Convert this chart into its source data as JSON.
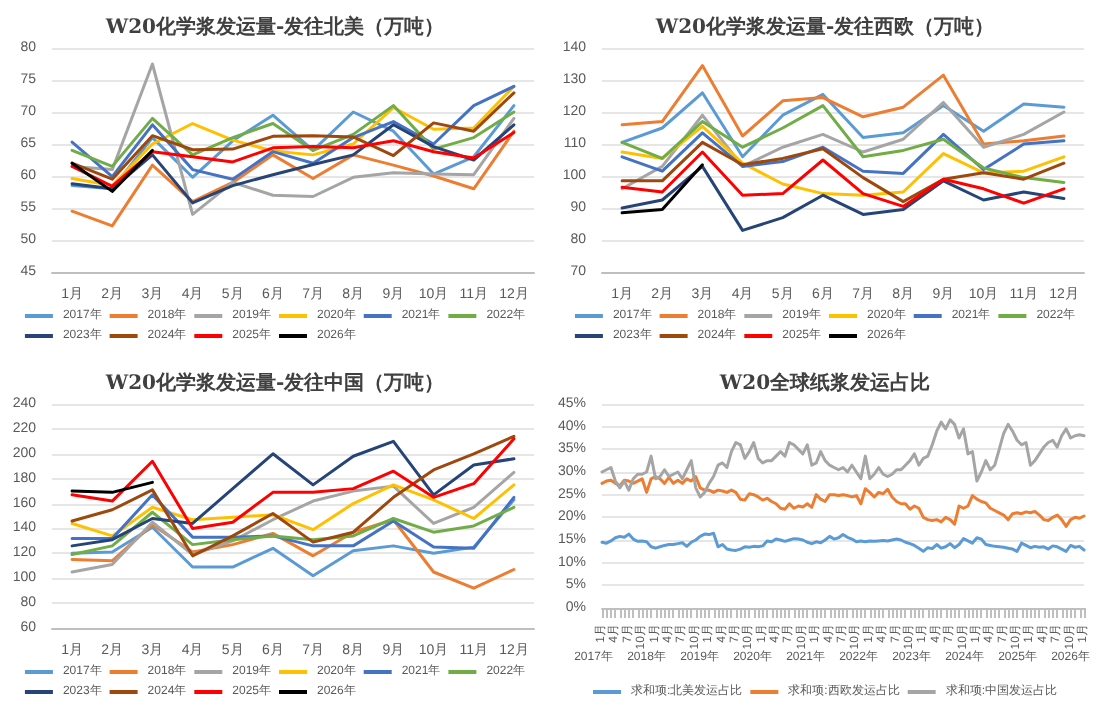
{
  "chart_data": [
    {
      "type": "line",
      "title": "W20化学浆发运量-发往北美（万吨）",
      "categories": [
        "1月",
        "2月",
        "3月",
        "4月",
        "5月",
        "6月",
        "7月",
        "8月",
        "9月",
        "10月",
        "11月",
        "12月"
      ],
      "ylim": [
        45,
        80
      ],
      "yticks": [
        45,
        50,
        55,
        60,
        65,
        70,
        75,
        80
      ],
      "grid": "y",
      "legend": "bottom",
      "marker": "none",
      "line_style": "solid",
      "series": [
        {
          "name": "2017年",
          "color": "#5b9bd5",
          "values": [
            58.5,
            58,
            66,
            59.8,
            65.5,
            69.5,
            64,
            70,
            67,
            60.3,
            63,
            71
          ]
        },
        {
          "name": "2018年",
          "color": "#ed7d31",
          "values": [
            54.5,
            52.2,
            61.7,
            56,
            59,
            63.3,
            59.6,
            63.3,
            61.7,
            60,
            58,
            67
          ]
        },
        {
          "name": "2019年",
          "color": "#a5a5a5",
          "values": [
            61.5,
            61,
            77.5,
            54,
            59,
            57,
            56.8,
            59.8,
            60.5,
            60.3,
            60.2,
            69
          ]
        },
        {
          "name": "2020年",
          "color": "#ffc000",
          "values": [
            59.6,
            58.5,
            65,
            68.2,
            65.6,
            63.9,
            63.3,
            65,
            70.7,
            67.3,
            67.5,
            74
          ]
        },
        {
          "name": "2021年",
          "color": "#4472c4",
          "values": [
            65.3,
            59.9,
            68,
            61,
            59.5,
            63.8,
            62,
            66,
            68.5,
            65,
            71,
            74
          ]
        },
        {
          "name": "2022年",
          "color": "#70ad47",
          "values": [
            64,
            61.5,
            69,
            63.3,
            66,
            68.2,
            64,
            66.5,
            71,
            64.2,
            66,
            70
          ]
        },
        {
          "name": "2023年",
          "color": "#264478",
          "values": [
            58.8,
            58,
            63.3,
            55.8,
            58.5,
            60.2,
            61.8,
            63.3,
            68,
            64.6,
            62.5,
            68
          ]
        },
        {
          "name": "2024年",
          "color": "#9e480e",
          "values": [
            62,
            59.5,
            66.3,
            64.1,
            64.2,
            66.2,
            66.3,
            66.1,
            63.2,
            68.3,
            67,
            73
          ]
        },
        {
          "name": "2025年",
          "color": "#ff0000",
          "values": [
            61.5,
            58.4,
            63.8,
            63,
            62.2,
            64.4,
            64.6,
            64.4,
            65.5,
            63.8,
            62.8,
            66.8
          ]
        },
        {
          "name": "2026年",
          "color": "#000000",
          "values": [
            62,
            57.6,
            64,
            null,
            null,
            null,
            null,
            null,
            null,
            null,
            null,
            null
          ]
        }
      ]
    },
    {
      "type": "line",
      "title": "W20化学浆发运量-发往西欧（万吨）",
      "categories": [
        "1月",
        "2月",
        "3月",
        "4月",
        "5月",
        "6月",
        "7月",
        "8月",
        "9月",
        "10月",
        "11月",
        "12月"
      ],
      "ylim": [
        70,
        140
      ],
      "yticks": [
        70,
        80,
        90,
        100,
        110,
        120,
        130,
        140
      ],
      "grid": "y",
      "legend": "bottom",
      "marker": "none",
      "line_style": "solid",
      "series": [
        {
          "name": "2017年",
          "color": "#5b9bd5",
          "values": [
            110.5,
            115,
            126,
            106,
            119,
            125.5,
            112,
            113.5,
            122,
            114,
            122.5,
            121.5
          ]
        },
        {
          "name": "2018年",
          "color": "#ed7d31",
          "values": [
            116,
            117,
            134.5,
            112.5,
            123.5,
            124.5,
            118.5,
            121.5,
            131.5,
            110,
            111,
            112.5
          ]
        },
        {
          "name": "2019年",
          "color": "#a5a5a5",
          "values": [
            96,
            103,
            119,
            103,
            109,
            113,
            107.5,
            111.5,
            123,
            109,
            113,
            120
          ]
        },
        {
          "name": "2020年",
          "color": "#ffc000",
          "values": [
            107.5,
            105.5,
            115.5,
            104,
            97.5,
            94.5,
            94,
            95,
            107,
            101,
            101.5,
            106
          ]
        },
        {
          "name": "2021年",
          "color": "#4472c4",
          "values": [
            106,
            101.5,
            113.5,
            103,
            104.5,
            109,
            101.5,
            100.8,
            113,
            102,
            110,
            111
          ]
        },
        {
          "name": "2022年",
          "color": "#70ad47",
          "values": [
            110.5,
            105.5,
            117,
            109,
            115,
            122,
            106,
            108,
            111.5,
            102.5,
            99.5,
            98
          ]
        },
        {
          "name": "2023年",
          "color": "#264478",
          "values": [
            90,
            92.5,
            103,
            83,
            87,
            94,
            88,
            89.5,
            98.5,
            92.5,
            95,
            93
          ]
        },
        {
          "name": "2024年",
          "color": "#9e480e",
          "values": [
            98.5,
            98.5,
            110.5,
            103.5,
            105.5,
            108.5,
            99.5,
            92,
            99,
            101,
            99,
            104
          ]
        },
        {
          "name": "2025年",
          "color": "#ff0000",
          "values": [
            96.5,
            95,
            107.5,
            94,
            94.5,
            105,
            94.5,
            90.5,
            99,
            96,
            91.5,
            96
          ]
        },
        {
          "name": "2026年",
          "color": "#000000",
          "values": [
            88.5,
            89.5,
            103.5,
            null,
            null,
            null,
            null,
            null,
            null,
            null,
            null,
            null
          ]
        }
      ]
    },
    {
      "type": "line",
      "title": "W20化学浆发运量-发往中国（万吨）",
      "categories": [
        "1月",
        "2月",
        "3月",
        "4月",
        "5月",
        "6月",
        "7月",
        "8月",
        "9月",
        "10月",
        "11月",
        "12月"
      ],
      "ylim": [
        60,
        240
      ],
      "yticks": [
        60,
        80,
        100,
        120,
        140,
        160,
        180,
        200,
        220,
        240
      ],
      "grid": "y",
      "legend": "bottom",
      "marker": "none",
      "line_style": "solid",
      "series": [
        {
          "name": "2017年",
          "color": "#5b9bd5",
          "values": [
            120,
            121,
            141,
            109,
            109,
            124,
            102,
            122,
            126,
            120,
            125,
            163
          ]
        },
        {
          "name": "2018年",
          "color": "#ed7d31",
          "values": [
            115,
            114,
            143,
            121,
            127,
            136,
            118,
            137,
            147,
            105,
            92,
            107
          ]
        },
        {
          "name": "2019年",
          "color": "#a5a5a5",
          "values": [
            105,
            111,
            145,
            119,
            130,
            147,
            162,
            170,
            174,
            144,
            157,
            185
          ]
        },
        {
          "name": "2020年",
          "color": "#ffc000",
          "values": [
            144,
            134,
            157,
            147,
            149,
            151,
            139,
            160,
            175,
            163,
            148,
            175
          ]
        },
        {
          "name": "2021年",
          "color": "#4472c4",
          "values": [
            132,
            132,
            167,
            133,
            133,
            134,
            126,
            126,
            146,
            125,
            124,
            165
          ]
        },
        {
          "name": "2022年",
          "color": "#70ad47",
          "values": [
            119,
            126,
            153,
            127,
            131,
            134,
            131,
            134,
            148,
            137,
            142,
            157
          ]
        },
        {
          "name": "2023年",
          "color": "#264478",
          "values": [
            126,
            131,
            148,
            144,
            172,
            200,
            175,
            198,
            210,
            167,
            191,
            196
          ]
        },
        {
          "name": "2024年",
          "color": "#9e480e",
          "values": [
            146,
            155,
            171,
            118,
            134,
            152,
            129,
            137,
            165,
            187,
            200,
            214
          ]
        },
        {
          "name": "2025年",
          "color": "#ff0000",
          "values": [
            167,
            162,
            194,
            140,
            145,
            169,
            169,
            172,
            186,
            165,
            176,
            212
          ]
        },
        {
          "name": "2026年",
          "color": "#000000",
          "values": [
            170,
            169,
            177,
            null,
            null,
            null,
            null,
            null,
            null,
            null,
            null,
            null
          ]
        }
      ]
    },
    {
      "type": "line",
      "title": "W20全球纸浆发运占比",
      "annotations": [
        "2017年",
        "2018年",
        "2019年",
        "2020年",
        "2021年",
        "2022年",
        "2023年",
        "2024年",
        "2025年",
        "2026年"
      ],
      "categories": [
        "1月",
        null,
        null,
        "4月",
        null,
        null,
        "7月",
        null,
        null,
        "10月",
        null,
        null,
        "1月",
        null,
        null,
        "4月",
        null,
        null,
        "7月",
        null,
        null,
        "10月",
        null,
        null,
        "1月",
        null,
        null,
        "4月",
        null,
        null,
        "7月",
        null,
        null,
        "10月",
        null,
        null,
        "1月",
        null,
        null,
        "4月",
        null,
        null,
        "7月",
        null,
        null,
        "10月",
        null,
        null,
        "1月",
        null,
        null,
        "4月",
        null,
        null,
        "7月",
        null,
        null,
        "10月",
        null,
        null,
        "1月",
        null,
        null,
        "4月",
        null,
        null,
        "7月",
        null,
        null,
        "10月",
        null,
        null,
        "1月",
        null,
        null,
        "4月",
        null,
        null,
        "7月",
        null,
        null,
        "10月",
        null,
        null,
        "1月",
        null,
        null,
        "4月",
        null,
        null,
        "7月",
        null,
        null,
        "10月",
        null,
        null,
        "1月",
        null,
        null,
        "4月",
        null,
        null,
        "7月",
        null,
        null,
        "10月",
        null,
        null,
        "1月"
      ],
      "ylim": [
        0,
        45
      ],
      "yticks": [
        {
          "value": 0,
          "label": "0%"
        },
        {
          "value": 5,
          "label": "5%"
        },
        {
          "value": 10,
          "label": "10%"
        },
        {
          "value": 15,
          "label": "15%"
        },
        {
          "value": 20,
          "label": "20%"
        },
        {
          "value": 25,
          "label": "25%"
        },
        {
          "value": 30,
          "label": "30%"
        },
        {
          "value": 35,
          "label": "35%"
        },
        {
          "value": 40,
          "label": "40%"
        },
        {
          "value": 45,
          "label": "45%"
        }
      ],
      "grid": "y",
      "legend": "bottom",
      "marker": "none",
      "line_style": "solid",
      "series": [
        {
          "name": "求和项:北美发运占比",
          "color": "#5b9bd5",
          "values": [
            14.5,
            14.3,
            14.8,
            15.5,
            15.8,
            15.6,
            16.3,
            15.2,
            14.7,
            14.8,
            14.6,
            13.5,
            13.2,
            13.5,
            13.8,
            14,
            14,
            14.2,
            14.4,
            13.6,
            14.5,
            15,
            15.8,
            16.3,
            16.2,
            16.5,
            13.5,
            14,
            13,
            12.8,
            12.7,
            13,
            13.5,
            13.4,
            13.6,
            13.5,
            13.7,
            14.8,
            14.6,
            15.2,
            15,
            14.7,
            15,
            15.3,
            15.2,
            15,
            14.5,
            14.2,
            14.6,
            14.4,
            15,
            15.8,
            15.2,
            15.5,
            16.2,
            15.6,
            15.2,
            14.6,
            14.8,
            14.6,
            14.8,
            14.7,
            14.8,
            14.9,
            14.8,
            15,
            15.2,
            15,
            14.5,
            14.2,
            13.8,
            13.2,
            12.5,
            13.3,
            13.1,
            14,
            13.2,
            13.5,
            14.2,
            13.3,
            14,
            15.3,
            14.8,
            14.3,
            15.5,
            15.2,
            14,
            13.8,
            13.6,
            13.5,
            13.4,
            13.2,
            13,
            12.5,
            14.3,
            13.8,
            13.3,
            13.6,
            13.4,
            13.5,
            13,
            13.7,
            13.5,
            13,
            12.5,
            13.8,
            13.4,
            13.6,
            12.8
          ]
        },
        {
          "name": "求和项:西欧发运占比",
          "color": "#ed7d31",
          "values": [
            27.5,
            28,
            28.2,
            27.5,
            27,
            28.2,
            28,
            27.5,
            28,
            28.5,
            25.5,
            28.5,
            29,
            28.5,
            27.5,
            28.8,
            27.5,
            28.2,
            27.5,
            28.5,
            28,
            29,
            26.5,
            26,
            26,
            25.5,
            26,
            25.8,
            25.5,
            26,
            25.5,
            24,
            23.8,
            25.2,
            25,
            24.5,
            23.8,
            24.2,
            23.5,
            23,
            22,
            21.8,
            23,
            22,
            22.5,
            22.3,
            23,
            22.2,
            25,
            24,
            23.5,
            25,
            25,
            24.8,
            25,
            24.8,
            24.5,
            24.8,
            23,
            26.3,
            25.5,
            24.5,
            25.5,
            25.2,
            26.2,
            24.5,
            23.5,
            23,
            23,
            21.8,
            22.5,
            22,
            20,
            19.5,
            19.3,
            19.5,
            19,
            20,
            19.5,
            18.5,
            22.5,
            22,
            22.5,
            24.8,
            24,
            23.5,
            23.2,
            22,
            21.5,
            21,
            20.5,
            19.5,
            20.8,
            21,
            20.8,
            21.2,
            21,
            21.3,
            20.5,
            19.5,
            19.3,
            20,
            20.5,
            19.5,
            18,
            19.5,
            20,
            19.8,
            20.3
          ]
        },
        {
          "name": "求和项:中国发运占比",
          "color": "#a5a5a5",
          "values": [
            30,
            30.5,
            31,
            28,
            26.5,
            28,
            26,
            28.5,
            29.5,
            29.5,
            30,
            33.5,
            28.5,
            29,
            30.5,
            29,
            29.5,
            30,
            28.5,
            30.5,
            32.5,
            26.5,
            24.5,
            25.5,
            27.5,
            29,
            31.5,
            32,
            31,
            34.5,
            36.5,
            36,
            33,
            34.5,
            36.5,
            33,
            32,
            32.5,
            32.5,
            33.5,
            34.5,
            33.5,
            36.5,
            36,
            35,
            34,
            36,
            31.5,
            32,
            34.5,
            32.5,
            31.5,
            31,
            30.5,
            31,
            30,
            31.5,
            30,
            28.5,
            33.5,
            28.5,
            29.5,
            31,
            29.5,
            29,
            29.5,
            30.5,
            30.5,
            31.5,
            32.5,
            34,
            31.5,
            33,
            33.5,
            36,
            39,
            41,
            39.5,
            41.5,
            40.5,
            37.5,
            39.5,
            34,
            34.5,
            28,
            30,
            32.5,
            30.5,
            31.5,
            35,
            38.5,
            40.5,
            39,
            37,
            36,
            36.5,
            31.5,
            32.5,
            34,
            35.5,
            36.5,
            37,
            35.5,
            38,
            39.5,
            37.5,
            38,
            38.2,
            38
          ]
        }
      ]
    }
  ]
}
